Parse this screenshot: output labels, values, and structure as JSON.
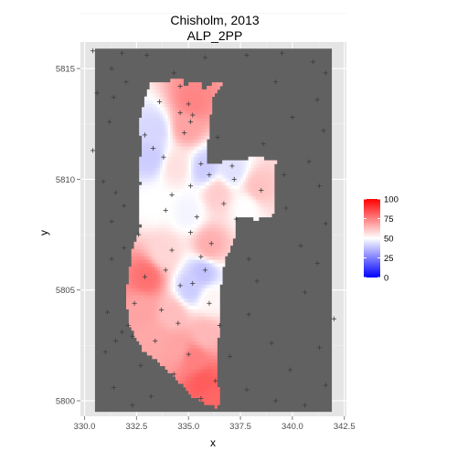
{
  "chart_data": {
    "type": "heatmap",
    "title_line1": "Chisholm, 2013",
    "title_line2": "ALP_2PP",
    "xlabel": "x",
    "ylabel": "y",
    "xlim": [
      329.8,
      342.6
    ],
    "ylim": [
      5799.3,
      5816.2
    ],
    "x_ticks": [
      330.0,
      332.5,
      335.0,
      337.5,
      340.0,
      342.5
    ],
    "x_tick_labels": [
      "330.0",
      "332.5",
      "335.0",
      "337.5",
      "340.0",
      "342.5"
    ],
    "y_ticks": [
      5800,
      5805,
      5810,
      5815
    ],
    "y_tick_labels": [
      "5800",
      "5805",
      "5810",
      "5815"
    ],
    "raster_extent": {
      "x": [
        330.5,
        341.9
      ],
      "y": [
        5799.5,
        5815.9
      ]
    },
    "background_color": "#616161",
    "legend": {
      "position": "right",
      "min": 0,
      "max": 100,
      "midpoint": 50,
      "colors": {
        "low": "#0000ff",
        "mid": "#ffffff",
        "high": "#ff0000"
      },
      "breaks": [
        0,
        25,
        50,
        75,
        100
      ],
      "break_labels": [
        "0",
        "25",
        "50",
        "75",
        "100"
      ]
    },
    "region_outline": [
      [
        333.2,
        5814.4
      ],
      [
        334.7,
        5814.5
      ],
      [
        334.8,
        5814.2
      ],
      [
        335.1,
        5814.4
      ],
      [
        335.6,
        5814.4
      ],
      [
        335.6,
        5814.0
      ],
      [
        336.0,
        5814.2
      ],
      [
        336.3,
        5814.4
      ],
      [
        336.6,
        5814.3
      ],
      [
        336.2,
        5813.8
      ],
      [
        336.0,
        5812.5
      ],
      [
        335.9,
        5811.5
      ],
      [
        335.9,
        5810.7
      ],
      [
        336.8,
        5810.8
      ],
      [
        338.3,
        5811.0
      ],
      [
        339.2,
        5810.8
      ],
      [
        339.1,
        5809.5
      ],
      [
        339.1,
        5808.4
      ],
      [
        338.3,
        5808.2
      ],
      [
        337.2,
        5808.3
      ],
      [
        337.2,
        5807.4
      ],
      [
        336.7,
        5806.2
      ],
      [
        336.5,
        5804.9
      ],
      [
        336.5,
        5803.6
      ],
      [
        336.4,
        5802.5
      ],
      [
        336.4,
        5801.0
      ],
      [
        336.5,
        5799.9
      ],
      [
        336.3,
        5799.7
      ],
      [
        335.8,
        5799.9
      ],
      [
        335.2,
        5800.2
      ],
      [
        334.4,
        5801.0
      ],
      [
        333.6,
        5801.7
      ],
      [
        332.8,
        5802.3
      ],
      [
        332.2,
        5803.3
      ],
      [
        332.0,
        5804.5
      ],
      [
        332.1,
        5805.6
      ],
      [
        332.3,
        5806.8
      ],
      [
        332.7,
        5807.9
      ],
      [
        332.6,
        5808.9
      ],
      [
        332.7,
        5809.8
      ],
      [
        332.6,
        5810.6
      ],
      [
        332.8,
        5811.4
      ],
      [
        332.6,
        5812.4
      ],
      [
        332.8,
        5813.2
      ],
      [
        333.0,
        5813.9
      ]
    ],
    "value_centers": [
      {
        "x": 335.2,
        "y": 5813.5,
        "value": 74
      },
      {
        "x": 334.9,
        "y": 5812.4,
        "value": 68
      },
      {
        "x": 333.4,
        "y": 5812.2,
        "value": 42
      },
      {
        "x": 333.2,
        "y": 5811.0,
        "value": 40
      },
      {
        "x": 334.4,
        "y": 5810.6,
        "value": 56
      },
      {
        "x": 335.8,
        "y": 5810.5,
        "value": 40
      },
      {
        "x": 337.1,
        "y": 5810.4,
        "value": 44
      },
      {
        "x": 338.3,
        "y": 5809.6,
        "value": 62
      },
      {
        "x": 336.4,
        "y": 5809.4,
        "value": 60
      },
      {
        "x": 337.8,
        "y": 5808.8,
        "value": 50
      },
      {
        "x": 333.4,
        "y": 5808.9,
        "value": 50
      },
      {
        "x": 335.0,
        "y": 5808.5,
        "value": 48
      },
      {
        "x": 336.0,
        "y": 5807.0,
        "value": 66
      },
      {
        "x": 333.8,
        "y": 5806.7,
        "value": 58
      },
      {
        "x": 335.7,
        "y": 5805.8,
        "value": 38
      },
      {
        "x": 333.0,
        "y": 5805.6,
        "value": 78
      },
      {
        "x": 335.1,
        "y": 5805.1,
        "value": 40
      },
      {
        "x": 336.1,
        "y": 5804.6,
        "value": 52
      },
      {
        "x": 332.8,
        "y": 5804.1,
        "value": 68
      },
      {
        "x": 334.2,
        "y": 5803.9,
        "value": 63
      },
      {
        "x": 335.8,
        "y": 5803.0,
        "value": 64
      },
      {
        "x": 334.4,
        "y": 5802.4,
        "value": 68
      },
      {
        "x": 333.4,
        "y": 5802.8,
        "value": 67
      },
      {
        "x": 335.3,
        "y": 5801.9,
        "value": 75
      },
      {
        "x": 335.7,
        "y": 5800.8,
        "value": 82
      },
      {
        "x": 336.0,
        "y": 5800.1,
        "value": 80
      }
    ],
    "point_markers": [
      [
        330.4,
        5815.8
      ],
      [
        331.8,
        5815.7
      ],
      [
        333.0,
        5815.6
      ],
      [
        335.8,
        5815.5
      ],
      [
        337.8,
        5815.6
      ],
      [
        339.5,
        5815.7
      ],
      [
        341.0,
        5815.3
      ],
      [
        331.3,
        5815.0
      ],
      [
        334.3,
        5814.8
      ],
      [
        341.6,
        5814.8
      ],
      [
        332.0,
        5814.4
      ],
      [
        339.2,
        5814.4
      ],
      [
        334.6,
        5814.2
      ],
      [
        330.6,
        5813.9
      ],
      [
        331.4,
        5813.7
      ],
      [
        333.6,
        5813.5
      ],
      [
        335.0,
        5813.4
      ],
      [
        341.2,
        5813.6
      ],
      [
        334.6,
        5813.0
      ],
      [
        335.2,
        5812.9
      ],
      [
        335.1,
        5812.6
      ],
      [
        331.2,
        5812.6
      ],
      [
        340.0,
        5812.8
      ],
      [
        334.8,
        5812.1
      ],
      [
        341.5,
        5812.2
      ],
      [
        332.9,
        5812.0
      ],
      [
        336.4,
        5811.9
      ],
      [
        330.4,
        5811.3
      ],
      [
        333.3,
        5811.4
      ],
      [
        338.6,
        5811.6
      ],
      [
        333.8,
        5811.0
      ],
      [
        335.6,
        5810.7
      ],
      [
        337.1,
        5810.6
      ],
      [
        340.8,
        5810.8
      ],
      [
        339.6,
        5810.2
      ],
      [
        330.9,
        5809.9
      ],
      [
        336.0,
        5810.2
      ],
      [
        337.2,
        5810.0
      ],
      [
        341.3,
        5809.7
      ],
      [
        331.5,
        5809.4
      ],
      [
        335.1,
        5809.7
      ],
      [
        338.5,
        5809.5
      ],
      [
        334.2,
        5809.3
      ],
      [
        331.9,
        5808.8
      ],
      [
        336.7,
        5808.9
      ],
      [
        333.9,
        5808.6
      ],
      [
        335.4,
        5808.3
      ],
      [
        339.7,
        5808.7
      ],
      [
        331.3,
        5808.1
      ],
      [
        337.3,
        5808.2
      ],
      [
        341.6,
        5808.0
      ],
      [
        335.1,
        5807.6
      ],
      [
        332.6,
        5807.5
      ],
      [
        336.1,
        5807.1
      ],
      [
        340.4,
        5807.0
      ],
      [
        331.9,
        5806.9
      ],
      [
        334.2,
        5806.8
      ],
      [
        331.3,
        5806.4
      ],
      [
        335.6,
        5806.5
      ],
      [
        337.9,
        5806.4
      ],
      [
        341.2,
        5806.2
      ],
      [
        333.9,
        5805.9
      ],
      [
        335.8,
        5805.9
      ],
      [
        332.9,
        5805.6
      ],
      [
        338.3,
        5805.4
      ],
      [
        334.6,
        5805.2
      ],
      [
        335.2,
        5805.3
      ],
      [
        340.6,
        5804.9
      ],
      [
        332.4,
        5804.4
      ],
      [
        336.0,
        5804.4
      ],
      [
        331.1,
        5804.0
      ],
      [
        333.7,
        5804.1
      ],
      [
        337.9,
        5803.9
      ],
      [
        342.0,
        5803.7
      ],
      [
        332.1,
        5803.4
      ],
      [
        334.5,
        5803.5
      ],
      [
        336.5,
        5803.4
      ],
      [
        331.8,
        5803.1
      ],
      [
        332.3,
        5802.9
      ],
      [
        331.5,
        5802.7
      ],
      [
        333.4,
        5802.7
      ],
      [
        339.0,
        5802.6
      ],
      [
        341.3,
        5802.4
      ],
      [
        331.0,
        5802.2
      ],
      [
        335.0,
        5802.1
      ],
      [
        337.0,
        5802.0
      ],
      [
        332.7,
        5801.6
      ],
      [
        339.9,
        5801.4
      ],
      [
        334.3,
        5801.2
      ],
      [
        336.3,
        5800.9
      ],
      [
        331.4,
        5800.6
      ],
      [
        337.8,
        5800.5
      ],
      [
        341.6,
        5800.7
      ],
      [
        333.2,
        5800.2
      ],
      [
        335.6,
        5800.1
      ],
      [
        339.2,
        5800.0
      ],
      [
        332.3,
        5799.8
      ],
      [
        340.6,
        5799.8
      ]
    ]
  }
}
